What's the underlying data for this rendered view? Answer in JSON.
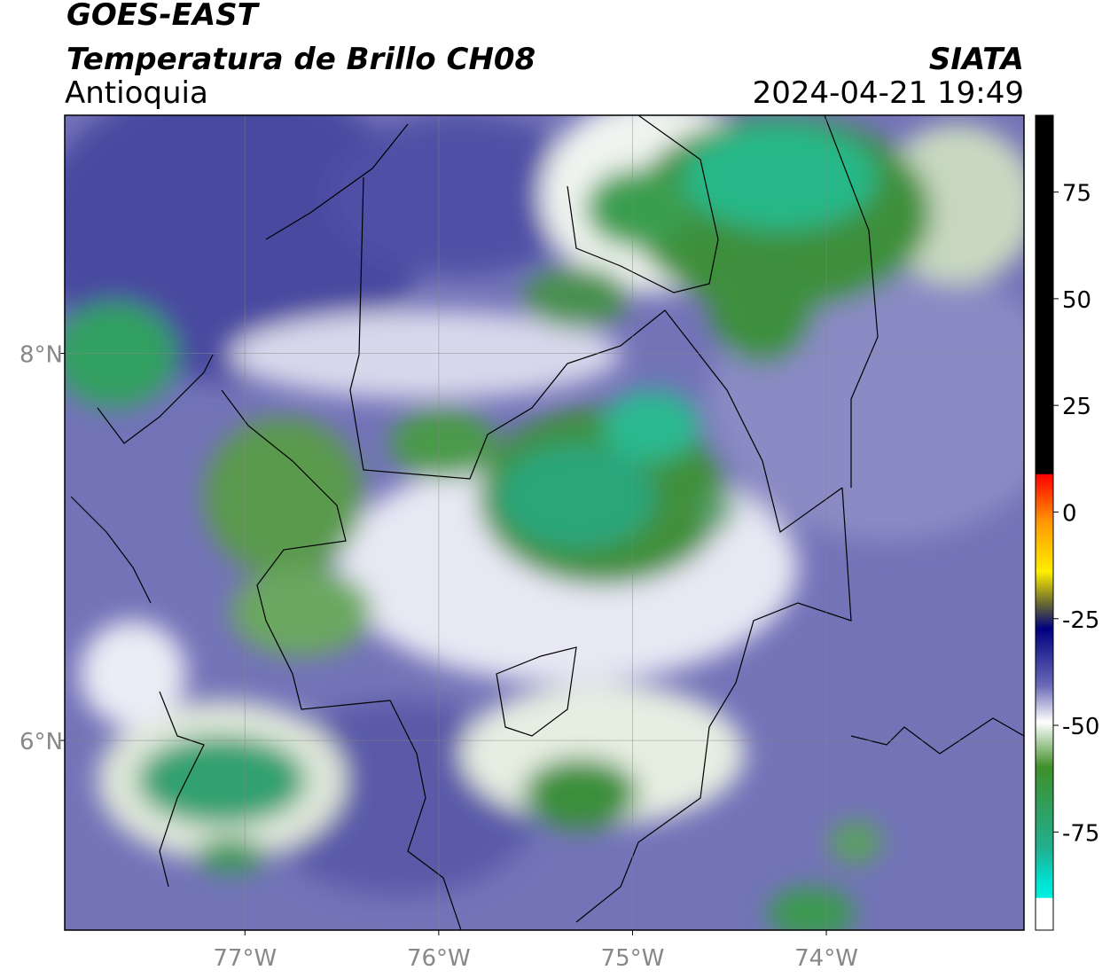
{
  "header": {
    "source": "GOES-EAST",
    "title": "Temperatura de Brillo CH08",
    "region": "Antioquia",
    "agency": "SIATA",
    "datetime": "2024-04-21 19:49"
  },
  "map": {
    "lon_range": [
      -77.93,
      -72.98
    ],
    "lat_range": [
      5.02,
      9.23
    ],
    "lon_ticks": [
      {
        "value": -77,
        "label": "77°W"
      },
      {
        "value": -76,
        "label": "76°W"
      },
      {
        "value": -75,
        "label": "75°W"
      },
      {
        "value": -74,
        "label": "74°W"
      }
    ],
    "lat_ticks": [
      {
        "value": 8,
        "label": "8°N"
      },
      {
        "value": 6,
        "label": "6°N"
      }
    ]
  },
  "colorbar": {
    "range": [
      -98,
      93
    ],
    "ticks": [
      75,
      50,
      25,
      0,
      -25,
      -50,
      -75
    ]
  }
}
